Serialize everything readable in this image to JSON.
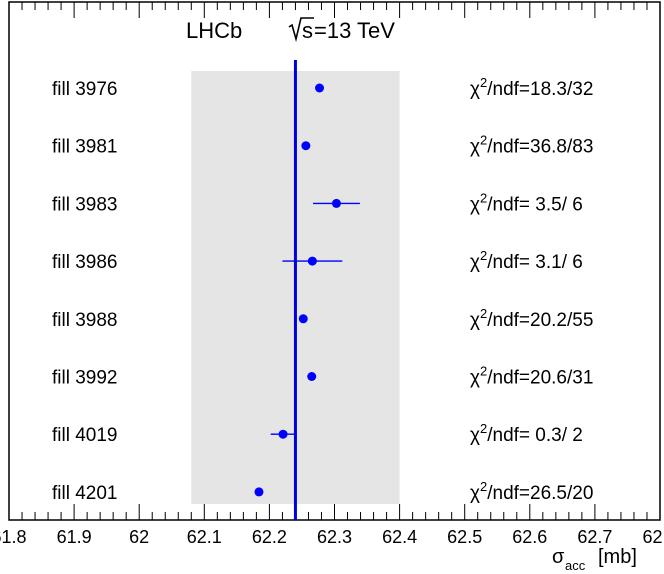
{
  "header": {
    "experiment": "LHCb",
    "energy_root": "s",
    "energy_value": "=13 TeV"
  },
  "xaxis": {
    "label_main": "σ",
    "label_sub": "acc",
    "label_unit": "[mb]"
  },
  "chart_data": {
    "type": "scatter",
    "title": "",
    "xlim": [
      61.8,
      62.8
    ],
    "x_ticks": [
      "61.8",
      "61.9",
      "62",
      "62.1",
      "62.2",
      "62.3",
      "62.4",
      "62.5",
      "62.6",
      "62.7",
      "62.8"
    ],
    "x_tick_values": [
      61.8,
      61.9,
      62.0,
      62.1,
      62.2,
      62.3,
      62.4,
      62.5,
      62.6,
      62.7,
      62.8
    ],
    "average": 62.24,
    "band": [
      62.08,
      62.4
    ],
    "series": [
      {
        "points": [
          {
            "label": "fill 3976",
            "x": 62.277,
            "err": 0.004,
            "chi2": "18.3/32"
          },
          {
            "label": "fill 3981",
            "x": 62.256,
            "err": 0.004,
            "chi2": "36.8/83"
          },
          {
            "label": "fill 3983",
            "x": 62.303,
            "err": 0.036,
            "chi2": " 3.5/ 6"
          },
          {
            "label": "fill 3986",
            "x": 62.266,
            "err": 0.046,
            "chi2": " 3.1/ 6"
          },
          {
            "label": "fill 3988",
            "x": 62.252,
            "err": 0.004,
            "chi2": "20.2/55"
          },
          {
            "label": "fill 3992",
            "x": 62.265,
            "err": 0.004,
            "chi2": "20.6/31"
          },
          {
            "label": "fill 4019",
            "x": 62.221,
            "err": 0.019,
            "chi2": " 0.3/ 2"
          },
          {
            "label": "fill 4201",
            "x": 62.184,
            "err": 0.004,
            "chi2": "26.5/20"
          }
        ]
      }
    ],
    "colors": {
      "marker": "#0000ff",
      "average_line": "#0000dd",
      "band": "#e5e5e5"
    },
    "grid": false
  }
}
